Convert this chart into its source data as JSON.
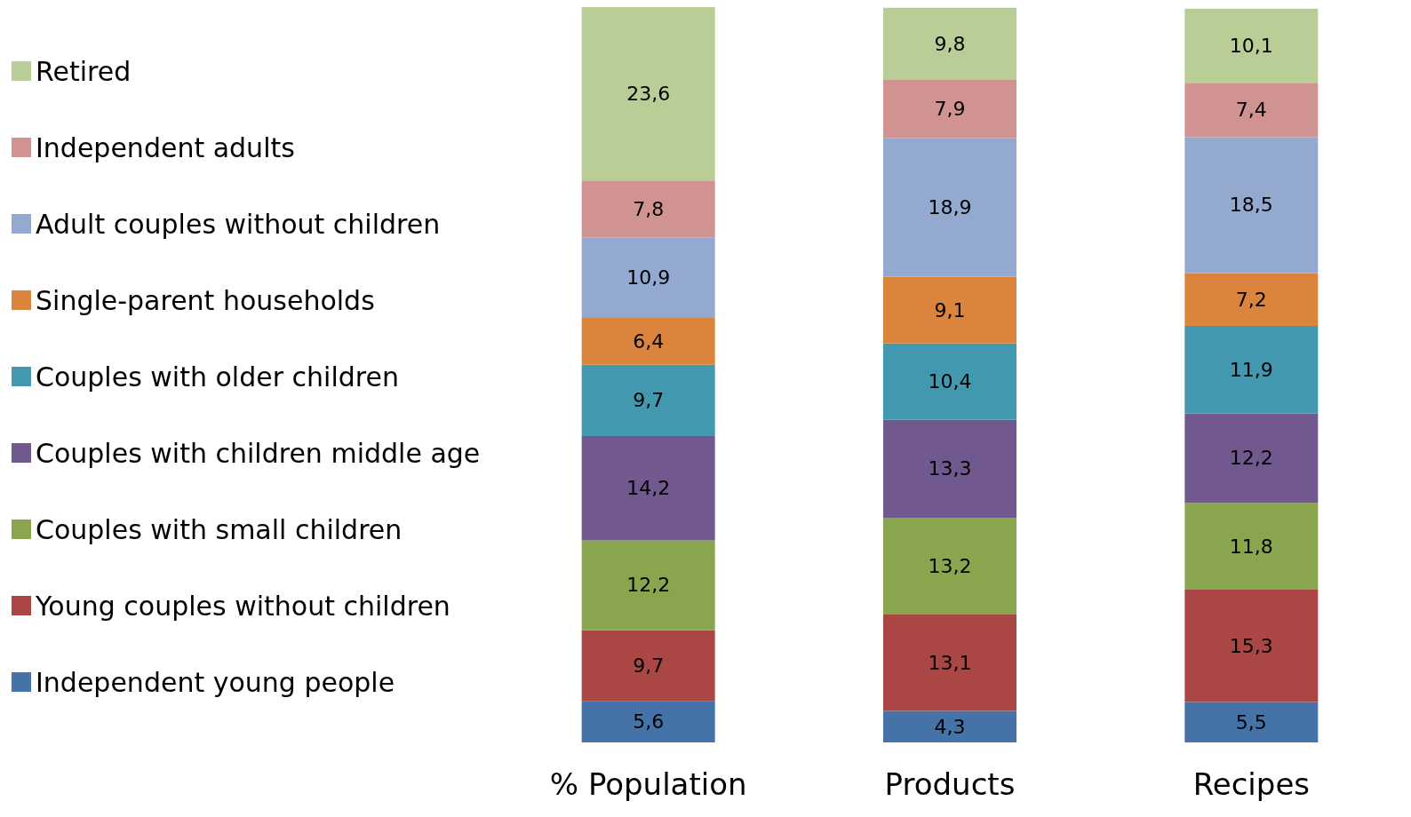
{
  "chart_data": {
    "type": "bar",
    "stacked": true,
    "categories": [
      "% Population",
      "Products",
      "Recipes"
    ],
    "legend": "left",
    "grid": false,
    "series": [
      {
        "name": "Independent young people",
        "color": "#4572a7",
        "values": [
          5.6,
          4.3,
          5.5
        ],
        "value_labels": [
          "5,6",
          "4,3",
          "5,5"
        ]
      },
      {
        "name": "Young couples without children",
        "color": "#aa4643",
        "values": [
          9.7,
          13.1,
          15.3
        ],
        "value_labels": [
          "9,7",
          "13,1",
          "15,3"
        ]
      },
      {
        "name": "Couples with small children",
        "color": "#89a54e",
        "values": [
          12.2,
          13.2,
          11.8
        ],
        "value_labels": [
          "12,2",
          "13,2",
          "11,8"
        ]
      },
      {
        "name": "Couples with children middle age",
        "color": "#71588f",
        "values": [
          14.2,
          13.3,
          12.2
        ],
        "value_labels": [
          "14,2",
          "13,3",
          "12,2"
        ]
      },
      {
        "name": "Couples with older children",
        "color": "#4198af",
        "values": [
          9.7,
          10.4,
          11.9
        ],
        "value_labels": [
          "9,7",
          "10,4",
          "11,9"
        ]
      },
      {
        "name": "Single-parent households",
        "color": "#db843d",
        "values": [
          6.4,
          9.1,
          7.2
        ],
        "value_labels": [
          "6,4",
          "9,1",
          "7,2"
        ]
      },
      {
        "name": "Adult couples without children",
        "color": "#93a9cf",
        "values": [
          10.9,
          18.9,
          18.5
        ],
        "value_labels": [
          "10,9",
          "18,9",
          "18,5"
        ]
      },
      {
        "name": "Independent adults",
        "color": "#d19392",
        "values": [
          7.8,
          7.9,
          7.4
        ],
        "value_labels": [
          "7,8",
          "7,9",
          "7,4"
        ]
      },
      {
        "name": "Retired",
        "color": "#b9cd96",
        "values": [
          23.6,
          9.8,
          10.1
        ],
        "value_labels": [
          "23,6",
          "9,8",
          "10,1"
        ]
      }
    ]
  }
}
